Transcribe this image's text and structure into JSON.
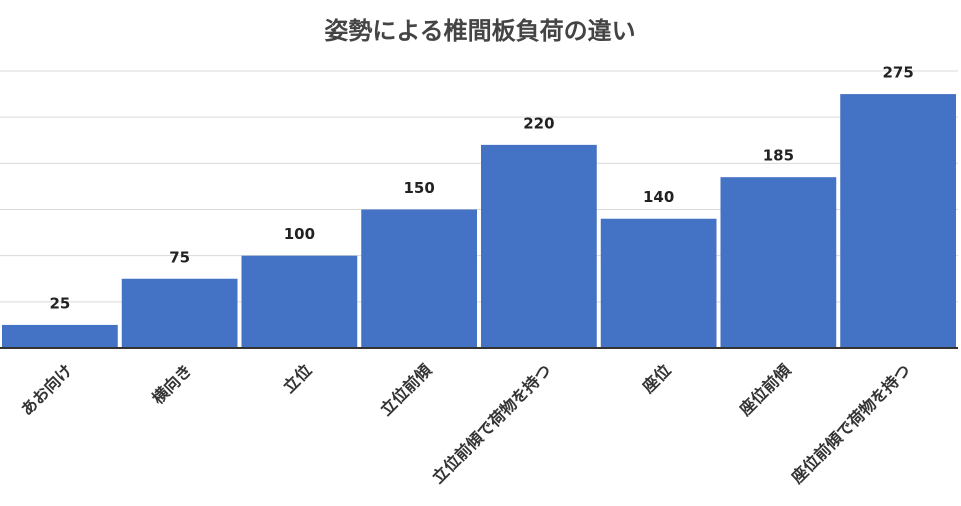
{
  "chart_data": {
    "type": "bar",
    "title": "姿勢による椎間板負荷の違い",
    "categories": [
      "あお向け",
      "横向き",
      "立位",
      "立位前傾",
      "立位前傾で荷物を持つ",
      "座位",
      "座位前傾",
      "座位前傾で荷物を持つ"
    ],
    "values": [
      25,
      75,
      100,
      150,
      220,
      140,
      185,
      275
    ],
    "color": "#4472c4",
    "ylim": [
      0,
      300
    ],
    "yticks": [
      0,
      50,
      100,
      150,
      200,
      250,
      300
    ],
    "grid": true
  }
}
